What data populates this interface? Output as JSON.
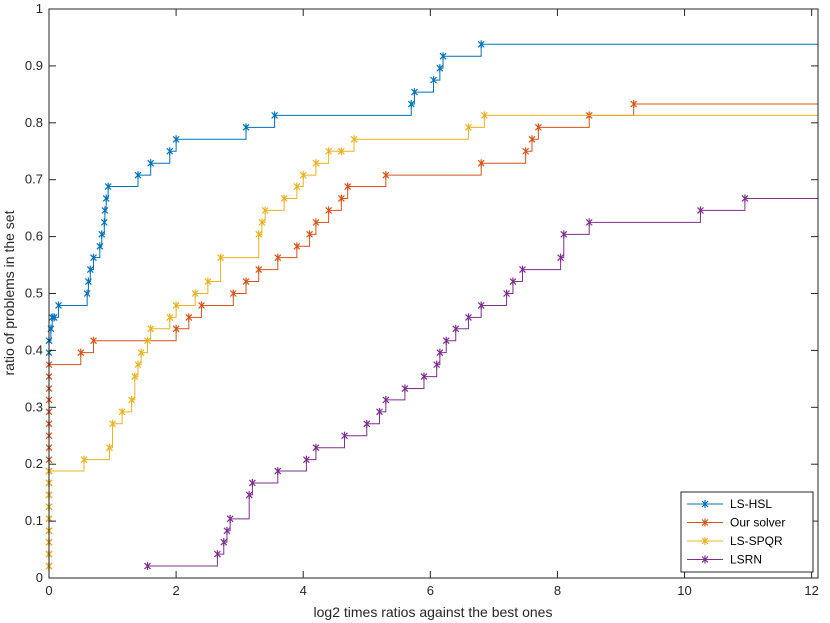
{
  "chart_data": {
    "type": "line",
    "title": "",
    "xlabel": "log2 times ratios against the best ones",
    "ylabel": "ratio of problems in the set",
    "xlim": [
      0,
      12.1
    ],
    "ylim": [
      0,
      1
    ],
    "xticks": [
      0,
      2,
      4,
      6,
      8,
      10,
      12
    ],
    "yticks": [
      0,
      0.1,
      0.2,
      0.3,
      0.4,
      0.5,
      0.6,
      0.7,
      0.8,
      0.9,
      1
    ],
    "xtick_labels": [
      "0",
      "2",
      "4",
      "6",
      "8",
      "10",
      "12"
    ],
    "ytick_labels": [
      "0",
      "0.1",
      "0.2",
      "0.3",
      "0.4",
      "0.5",
      "0.6",
      "0.7",
      "0.8",
      "0.9",
      "1"
    ],
    "grid": false,
    "legend_position": "bottom-right",
    "step": true,
    "marker": "x",
    "series": [
      {
        "name": "LS-HSL",
        "color": "#0072BD",
        "x": [
          0,
          0,
          0.03,
          0.05,
          0.08,
          0.15,
          0.6,
          0.62,
          0.65,
          0.7,
          0.8,
          0.83,
          0.87,
          0.88,
          0.9,
          0.93,
          1.4,
          1.6,
          1.9,
          2.0,
          3.1,
          3.55,
          5.7,
          5.75,
          6.05,
          6.15,
          6.2,
          6.8
        ],
        "y": [
          0.396,
          0.417,
          0.438,
          0.458,
          0.458,
          0.479,
          0.5,
          0.521,
          0.542,
          0.563,
          0.583,
          0.604,
          0.625,
          0.646,
          0.667,
          0.688,
          0.708,
          0.729,
          0.75,
          0.771,
          0.792,
          0.813,
          0.833,
          0.854,
          0.875,
          0.896,
          0.917,
          0.938
        ]
      },
      {
        "name": "Our solver",
        "color": "#D95319",
        "x": [
          0,
          0,
          0,
          0,
          0,
          0,
          0,
          0,
          0,
          0,
          0,
          0,
          0,
          0,
          0,
          0,
          0,
          0,
          0.5,
          0.7,
          2.0,
          2.2,
          2.4,
          2.9,
          3.1,
          3.3,
          3.6,
          3.9,
          4.1,
          4.2,
          4.4,
          4.6,
          4.7,
          5.3,
          6.8,
          7.5,
          7.6,
          7.7,
          8.5,
          9.2
        ],
        "y": [
          0.021,
          0.042,
          0.063,
          0.083,
          0.104,
          0.125,
          0.146,
          0.167,
          0.188,
          0.208,
          0.229,
          0.25,
          0.271,
          0.292,
          0.313,
          0.333,
          0.354,
          0.375,
          0.396,
          0.417,
          0.438,
          0.458,
          0.479,
          0.5,
          0.521,
          0.542,
          0.563,
          0.583,
          0.604,
          0.625,
          0.646,
          0.667,
          0.688,
          0.708,
          0.729,
          0.75,
          0.771,
          0.792,
          0.813,
          0.833
        ]
      },
      {
        "name": "LS-SPQR",
        "color": "#EDB120",
        "x": [
          0,
          0,
          0,
          0,
          0,
          0,
          0,
          0,
          0,
          0.55,
          0.95,
          1.0,
          1.15,
          1.3,
          1.35,
          1.4,
          1.45,
          1.55,
          1.6,
          1.9,
          2.0,
          2.3,
          2.5,
          2.7,
          3.3,
          3.35,
          3.4,
          3.7,
          3.9,
          4.0,
          4.2,
          4.4,
          4.6,
          4.8,
          6.6,
          6.85
        ],
        "y": [
          0.021,
          0.042,
          0.063,
          0.083,
          0.104,
          0.125,
          0.146,
          0.167,
          0.188,
          0.208,
          0.229,
          0.271,
          0.292,
          0.313,
          0.354,
          0.375,
          0.396,
          0.417,
          0.438,
          0.458,
          0.479,
          0.5,
          0.521,
          0.563,
          0.604,
          0.625,
          0.646,
          0.667,
          0.688,
          0.708,
          0.729,
          0.75,
          0.75,
          0.771,
          0.792,
          0.813
        ]
      },
      {
        "name": "LSRN",
        "color": "#7E2F8E",
        "x": [
          1.55,
          2.65,
          2.75,
          2.8,
          2.85,
          3.15,
          3.2,
          3.6,
          4.05,
          4.2,
          4.65,
          5.0,
          5.2,
          5.3,
          5.6,
          5.9,
          6.1,
          6.15,
          6.25,
          6.4,
          6.6,
          6.8,
          7.2,
          7.3,
          7.45,
          8.05,
          8.1,
          8.5,
          10.25,
          10.95
        ],
        "y": [
          0.021,
          0.042,
          0.063,
          0.083,
          0.104,
          0.146,
          0.167,
          0.188,
          0.208,
          0.229,
          0.25,
          0.271,
          0.292,
          0.313,
          0.333,
          0.354,
          0.375,
          0.396,
          0.417,
          0.438,
          0.458,
          0.479,
          0.5,
          0.521,
          0.542,
          0.563,
          0.604,
          0.625,
          0.646,
          0.667
        ]
      }
    ]
  }
}
